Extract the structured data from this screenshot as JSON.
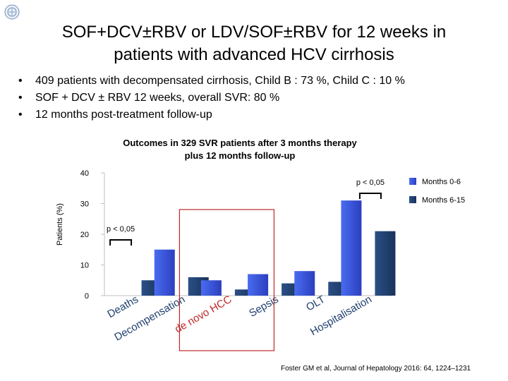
{
  "title_line1": "SOF+DCV±RBV or LDV/SOF±RBV for 12 weeks in",
  "title_line2": "patients with advanced HCV cirrhosis",
  "bullets": [
    "409 patients with decompensated cirrhosis, Child B : 73 %, Child C : 10 %",
    "SOF + DCV ± RBV 12 weeks, overall SVR: 80 %",
    "12 months post-treatment follow-up"
  ],
  "chart_data": {
    "type": "bar",
    "title": "Outcomes in 329 SVR patients after 3 months therapy plus 12 months follow-up",
    "title_line1": "Outcomes in 329 SVR patients after 3 months therapy",
    "title_line2": "plus 12 months follow-up",
    "ylabel": "Patients (%)",
    "ylim": [
      0,
      40
    ],
    "yticks": [
      0,
      10,
      20,
      30,
      40
    ],
    "categories": [
      "Deaths",
      "Decompensation",
      "de novo HCC",
      "Sepsis",
      "OLT",
      "Hospitalisation"
    ],
    "series": [
      {
        "name": "Months 0-6",
        "values": [
          0,
          15,
          5,
          7,
          8,
          31
        ]
      },
      {
        "name": "Months 6-15",
        "values": [
          5,
          6,
          2,
          4,
          4.5,
          21
        ]
      }
    ],
    "annotations": [
      {
        "text": "p < 0,05",
        "category": "Deaths"
      },
      {
        "text": "p < 0,05",
        "category": "Hospitalisation"
      }
    ],
    "highlight_category": "de novo HCC",
    "colors": {
      "series1": "#3a55e0",
      "series2": "#1f3f6e",
      "highlight": "#c0282a"
    }
  },
  "source": "Foster GM et al, Journal of Hepatology 2016: 64, 1224–1231"
}
